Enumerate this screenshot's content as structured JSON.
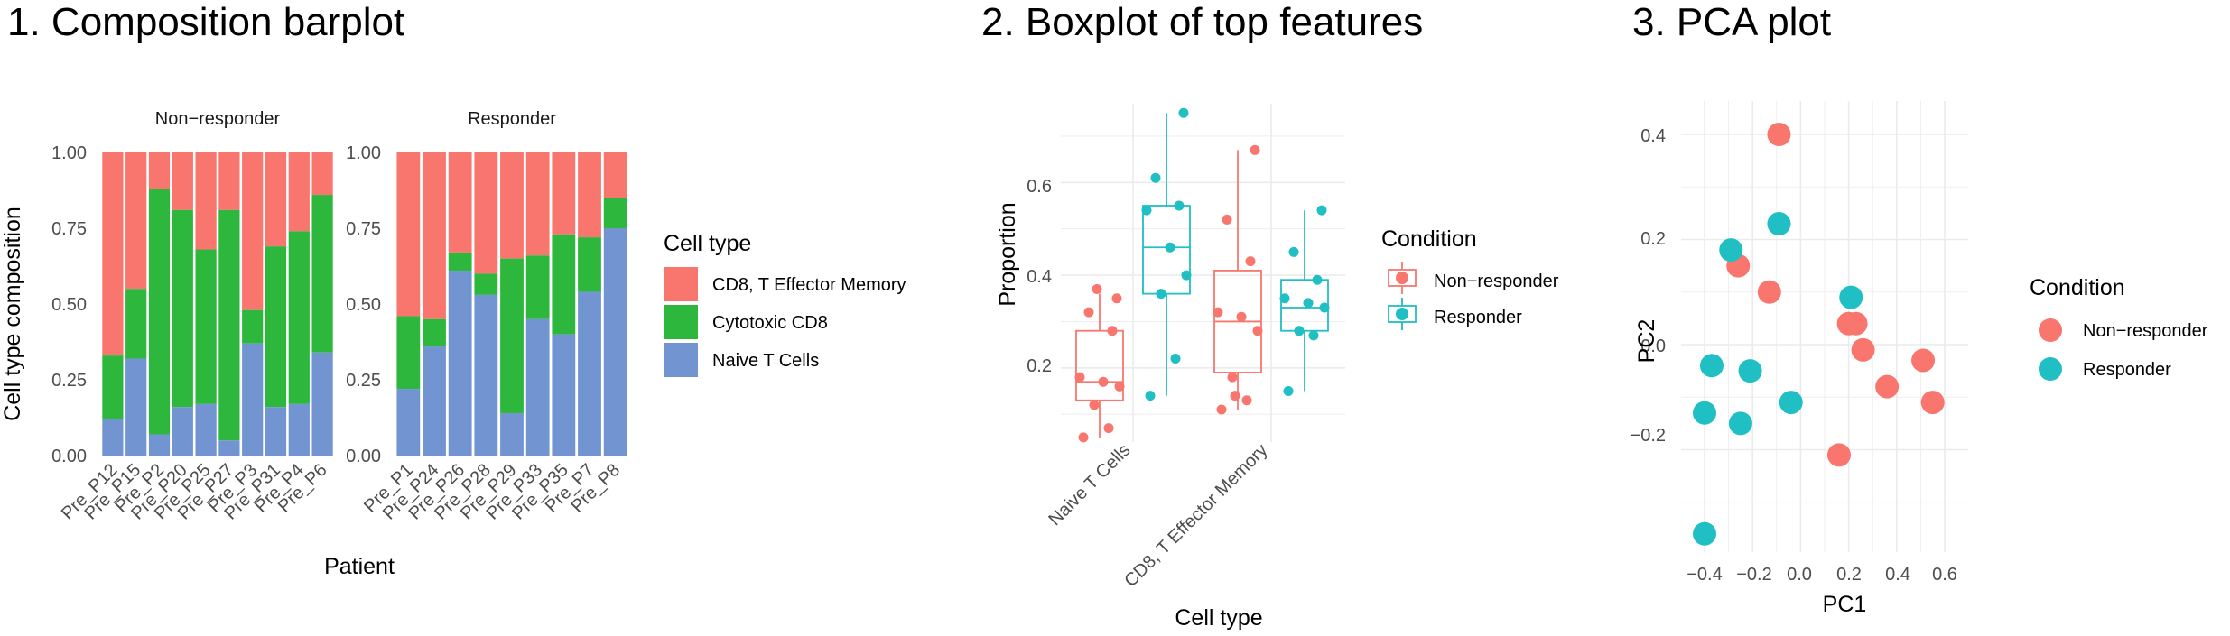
{
  "panels": {
    "p1_title": "1. Composition barplot",
    "p2_title": "2. Boxplot of top features",
    "p3_title": "3. PCA plot"
  },
  "colors": {
    "cd8_effector_memory": "#F8766D",
    "cytotoxic_cd8": "#2DB83D",
    "naive_t_cells": "#7295D1",
    "non_responder": "#F8766D",
    "responder": "#1FBFC3",
    "grid": "#EBEBEB"
  },
  "chart_data": [
    {
      "type": "bar",
      "stacked": true,
      "xlabel": "Patient",
      "ylabel": "Cell type composition",
      "ylim": [
        0,
        1
      ],
      "yticks": [
        "0.00",
        "0.25",
        "0.50",
        "0.75",
        "1.00"
      ],
      "legend_title": "Cell type",
      "legend_entries": [
        "CD8, T Effector Memory",
        "Cytotoxic CD8",
        "Naive T Cells"
      ],
      "facets": [
        {
          "label": "Non−responder",
          "categories": [
            "Pre_P12",
            "Pre_P15",
            "Pre_P2",
            "Pre_P20",
            "Pre_P25",
            "Pre_P27",
            "Pre_P3",
            "Pre_P31",
            "Pre_P4",
            "Pre_P6"
          ],
          "naive": [
            0.12,
            0.32,
            0.07,
            0.16,
            0.17,
            0.05,
            0.37,
            0.16,
            0.17,
            0.34
          ],
          "cytotoxic": [
            0.21,
            0.23,
            0.81,
            0.65,
            0.51,
            0.76,
            0.11,
            0.53,
            0.57,
            0.52
          ]
        },
        {
          "label": "Responder",
          "categories": [
            "Pre_P1",
            "Pre_P24",
            "Pre_P26",
            "Pre_P28",
            "Pre_P29",
            "Pre_P33",
            "Pre_P35",
            "Pre_P7",
            "Pre_P8"
          ],
          "naive": [
            0.22,
            0.36,
            0.61,
            0.53,
            0.14,
            0.45,
            0.4,
            0.54,
            0.75
          ],
          "cytotoxic": [
            0.24,
            0.09,
            0.06,
            0.07,
            0.51,
            0.21,
            0.33,
            0.18,
            0.1
          ]
        }
      ]
    },
    {
      "type": "box",
      "xlabel": "Cell type",
      "ylabel": "Proportion",
      "ylim": [
        0.04,
        0.77
      ],
      "yticks": [
        "0.2",
        "0.4",
        "0.6"
      ],
      "categories": [
        "Naive T Cells",
        "CD8, T Effector Memory"
      ],
      "legend_title": "Condition",
      "legend_entries": [
        "Non−responder",
        "Responder"
      ],
      "boxes": [
        {
          "category": "Naive T Cells",
          "group": "Non−responder",
          "min": 0.05,
          "q1": 0.13,
          "median": 0.17,
          "q3": 0.28,
          "max": 0.36
        },
        {
          "category": "Naive T Cells",
          "group": "Responder",
          "min": 0.14,
          "q1": 0.36,
          "median": 0.46,
          "q3": 0.55,
          "max": 0.75
        },
        {
          "category": "CD8, T Effector Memory",
          "group": "Non−responder",
          "min": 0.11,
          "q1": 0.19,
          "median": 0.3,
          "q3": 0.41,
          "max": 0.67
        },
        {
          "category": "CD8, T Effector Memory",
          "group": "Responder",
          "min": 0.15,
          "q1": 0.28,
          "median": 0.33,
          "q3": 0.39,
          "max": 0.54
        }
      ],
      "points": [
        {
          "category": "Naive T Cells",
          "group": "Non−responder",
          "values": [
            0.05,
            0.07,
            0.12,
            0.16,
            0.17,
            0.18,
            0.28,
            0.32,
            0.35,
            0.37
          ]
        },
        {
          "category": "Naive T Cells",
          "group": "Responder",
          "values": [
            0.14,
            0.22,
            0.36,
            0.4,
            0.46,
            0.54,
            0.55,
            0.61,
            0.75
          ]
        },
        {
          "category": "CD8, T Effector Memory",
          "group": "Non−responder",
          "values": [
            0.11,
            0.13,
            0.18,
            0.28,
            0.31,
            0.32,
            0.43,
            0.52,
            0.67,
            0.14
          ]
        },
        {
          "category": "CD8, T Effector Memory",
          "group": "Responder",
          "values": [
            0.15,
            0.27,
            0.28,
            0.33,
            0.34,
            0.35,
            0.39,
            0.45,
            0.54
          ]
        }
      ]
    },
    {
      "type": "scatter",
      "xlabel": "PC1",
      "ylabel": "PC2",
      "xlim": [
        -0.42,
        0.6
      ],
      "ylim": [
        -0.37,
        0.45
      ],
      "xticks": [
        "−0.4",
        "−0.2",
        "0.0",
        "0.2",
        "0.4",
        "0.6"
      ],
      "yticks": [
        "−0.2",
        "0.0",
        "0.2",
        "0.4"
      ],
      "legend_title": "Condition",
      "legend_entries": [
        "Non−responder",
        "Responder"
      ],
      "series": [
        {
          "name": "Non−responder",
          "x": [
            -0.09,
            -0.26,
            -0.13,
            0.2,
            0.23,
            0.26,
            0.36,
            0.51,
            0.55,
            0.16
          ],
          "y": [
            0.4,
            0.15,
            0.1,
            0.04,
            0.04,
            -0.01,
            -0.08,
            -0.03,
            -0.11,
            -0.21
          ]
        },
        {
          "name": "Responder",
          "x": [
            -0.29,
            -0.09,
            0.21,
            -0.37,
            -0.21,
            -0.4,
            -0.25,
            -0.04,
            -0.4
          ],
          "y": [
            0.18,
            0.23,
            0.09,
            -0.04,
            -0.05,
            -0.13,
            -0.15,
            -0.11,
            -0.36
          ]
        }
      ]
    }
  ]
}
